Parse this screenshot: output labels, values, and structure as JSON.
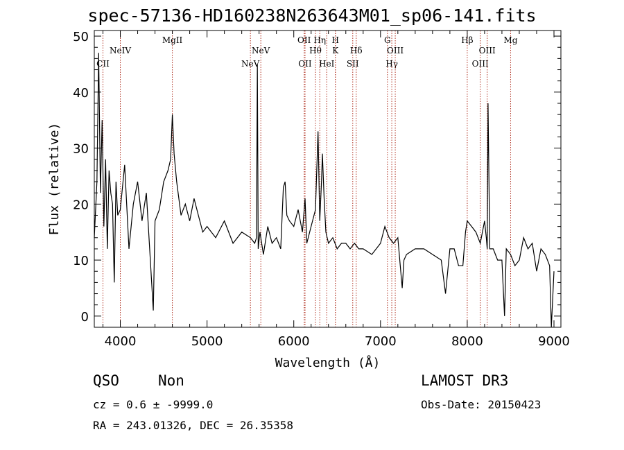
{
  "title": "spec-57136-HD160238N263643M01_sp06-141.fits",
  "info": {
    "class": "QSO",
    "subclass": "Non",
    "redshift": "cz = 0.6 ± -9999.0",
    "coords": "RA = 243.01326, DEC =  26.35358",
    "survey": "LAMOST DR3",
    "obs_date": "Obs-Date: 20150423"
  },
  "chart_data": {
    "type": "line",
    "title": "spec-57136-HD160238N263643M01_sp06-141.fits",
    "xlabel": "Wavelength (Å)",
    "ylabel": "Flux (relative)",
    "xlim": [
      3700,
      9080
    ],
    "ylim": [
      -2,
      51
    ],
    "xticks": [
      4000,
      5000,
      6000,
      7000,
      8000,
      9000
    ],
    "yticks": [
      0,
      10,
      20,
      30,
      40,
      50
    ],
    "line_color": "#000000",
    "marker_color": "#b03020",
    "series": [
      {
        "x": [
          3700,
          3730,
          3750,
          3770,
          3790,
          3810,
          3830,
          3850,
          3870,
          3890,
          3910,
          3930,
          3950,
          3970,
          4000,
          4050,
          4100,
          4150,
          4200,
          4250,
          4300,
          4350,
          4380,
          4400,
          4450,
          4500,
          4550,
          4580,
          4600,
          4620,
          4650,
          4700,
          4750,
          4800,
          4850,
          4900,
          4950,
          5000,
          5100,
          5200,
          5300,
          5400,
          5500,
          5550,
          5570,
          5580,
          5590,
          5610,
          5650,
          5700,
          5750,
          5800,
          5850,
          5880,
          5900,
          5920,
          5950,
          6000,
          6050,
          6100,
          6130,
          6150,
          6200,
          6250,
          6280,
          6300,
          6320,
          6330,
          6350,
          6370,
          6400,
          6450,
          6500,
          6550,
          6600,
          6650,
          6700,
          6750,
          6800,
          6900,
          7000,
          7050,
          7100,
          7150,
          7200,
          7250,
          7270,
          7300,
          7400,
          7500,
          7600,
          7700,
          7750,
          7800,
          7850,
          7900,
          7950,
          7980,
          8000,
          8050,
          8100,
          8150,
          8200,
          8220,
          8230,
          8240,
          8260,
          8300,
          8350,
          8400,
          8430,
          8450,
          8500,
          8550,
          8600,
          8650,
          8700,
          8750,
          8800,
          8850,
          8900,
          8950,
          8970,
          9000
        ],
        "values": [
          14,
          24,
          47,
          22,
          35,
          16,
          28,
          12,
          26,
          22,
          20,
          6,
          24,
          18,
          19,
          27,
          12,
          20,
          24,
          17,
          22,
          9,
          1,
          17,
          19,
          24,
          26,
          28,
          36,
          29,
          24,
          18,
          20,
          17,
          21,
          18,
          15,
          16,
          14,
          17,
          13,
          15,
          14,
          13,
          14,
          45,
          12,
          15,
          11,
          16,
          13,
          14,
          12,
          23,
          24,
          18,
          17,
          16,
          19,
          15,
          21,
          13,
          16,
          19,
          33,
          17,
          24,
          29,
          21,
          15,
          13,
          14,
          12,
          13,
          13,
          12,
          13,
          12,
          12,
          11,
          13,
          16,
          14,
          13,
          14,
          5,
          10,
          11,
          12,
          12,
          11,
          10,
          4,
          12,
          12,
          9,
          9,
          15,
          17,
          16,
          15,
          13,
          17,
          14,
          12,
          38,
          12,
          12,
          10,
          10,
          0,
          12,
          11,
          9,
          10,
          14,
          12,
          13,
          8,
          12,
          11,
          9,
          -2,
          8
        ]
      }
    ],
    "lines": [
      {
        "label": "CII",
        "x": 3800,
        "row": 3
      },
      {
        "label": "NeIV",
        "x": 4000,
        "row": 1
      },
      {
        "label": "MgII",
        "x": 4600,
        "row": 0
      },
      {
        "label": "NeV",
        "x": 5500,
        "row": 3
      },
      {
        "label": "NeV",
        "x": 5620,
        "row": 1
      },
      {
        "label": "OII",
        "x": 6120,
        "row": 0
      },
      {
        "label": "OII",
        "x": 6130,
        "row": 3
      },
      {
        "label": "Hθ",
        "x": 6250,
        "row": 1
      },
      {
        "label": "Hη",
        "x": 6300,
        "row": 0
      },
      {
        "label": "HeI",
        "x": 6380,
        "row": 3
      },
      {
        "label": "H",
        "x": 6480,
        "row": 0
      },
      {
        "label": "K",
        "x": 6480,
        "row": 1
      },
      {
        "label": "SII",
        "x": 6680,
        "row": 3
      },
      {
        "label": "Hδ",
        "x": 6720,
        "row": 1
      },
      {
        "label": "G",
        "x": 7080,
        "row": 0
      },
      {
        "label": "Hγ",
        "x": 7130,
        "row": 3
      },
      {
        "label": "OIII",
        "x": 7170,
        "row": 1
      },
      {
        "label": "Hβ",
        "x": 8000,
        "row": 0
      },
      {
        "label": "OIII",
        "x": 8150,
        "row": 3
      },
      {
        "label": "OIII",
        "x": 8230,
        "row": 1
      },
      {
        "label": "Mg",
        "x": 8500,
        "row": 0
      }
    ]
  }
}
